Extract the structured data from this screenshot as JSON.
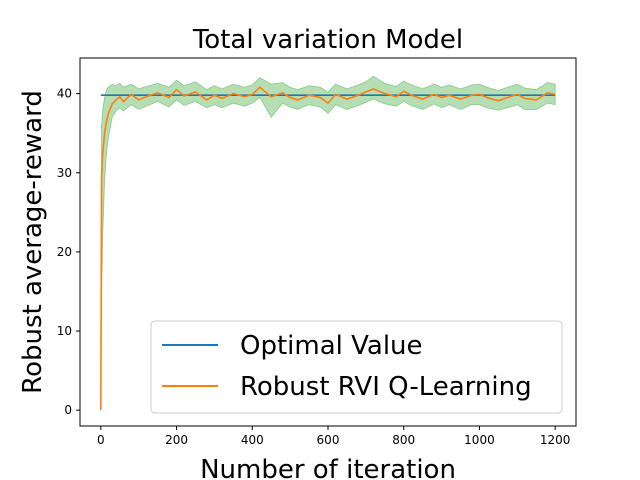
{
  "chart_data": {
    "type": "line",
    "title": "Total variation Model",
    "xlabel": "Number of iteration",
    "ylabel": "Robust average-reward",
    "xlim": [
      -55,
      1255
    ],
    "ylim": [
      -2,
      44.5
    ],
    "xticks": [
      0,
      200,
      400,
      600,
      800,
      1000,
      1200
    ],
    "yticks": [
      0,
      10,
      20,
      30,
      40
    ],
    "grid": false,
    "legend_position": "lower-right",
    "series": [
      {
        "name": "Optimal Value",
        "color": "#1f77b4",
        "x": [
          0,
          1200
        ],
        "y": [
          39.8,
          39.8
        ]
      },
      {
        "name": "Robust RVI Q-Learning",
        "color": "#ff7f0e",
        "x": [
          0,
          2,
          5,
          10,
          15,
          20,
          30,
          40,
          50,
          60,
          80,
          100,
          120,
          150,
          180,
          200,
          220,
          250,
          280,
          300,
          320,
          350,
          380,
          400,
          420,
          450,
          480,
          500,
          520,
          550,
          580,
          600,
          620,
          650,
          680,
          700,
          720,
          750,
          780,
          800,
          820,
          850,
          880,
          900,
          920,
          950,
          980,
          1000,
          1020,
          1050,
          1080,
          1100,
          1120,
          1150,
          1180,
          1200
        ],
        "y": [
          0,
          29.5,
          32.5,
          35.0,
          36.5,
          37.5,
          38.7,
          39.2,
          39.6,
          39.0,
          39.9,
          39.2,
          39.6,
          40.1,
          39.5,
          40.5,
          39.7,
          40.2,
          39.2,
          39.8,
          39.4,
          40.0,
          39.6,
          39.9,
          40.8,
          39.6,
          40.1,
          39.5,
          39.2,
          39.8,
          39.5,
          38.8,
          39.9,
          39.3,
          39.8,
          40.2,
          40.6,
          40.0,
          39.6,
          40.3,
          39.8,
          39.3,
          39.9,
          39.5,
          39.8,
          39.3,
          39.8,
          39.9,
          39.5,
          39.1,
          39.6,
          39.9,
          39.4,
          39.2,
          40.1,
          39.9
        ],
        "band_lower": [
          0,
          14.0,
          22.0,
          29.0,
          32.5,
          34.5,
          37.0,
          37.8,
          38.2,
          37.8,
          38.6,
          38.0,
          38.4,
          39.0,
          38.3,
          39.2,
          38.5,
          39.0,
          38.2,
          38.6,
          38.2,
          38.8,
          38.4,
          38.8,
          39.5,
          37.0,
          38.8,
          38.3,
          38.0,
          38.6,
          38.3,
          37.5,
          38.6,
          38.0,
          38.5,
          38.9,
          39.3,
          38.7,
          38.4,
          39.0,
          38.5,
          38.0,
          38.7,
          38.2,
          38.6,
          38.0,
          38.6,
          38.6,
          38.2,
          37.9,
          38.3,
          38.6,
          38.0,
          38.0,
          38.8,
          38.6
        ],
        "band_upper": [
          0,
          36.0,
          38.0,
          39.5,
          40.5,
          40.8,
          41.2,
          41.0,
          41.3,
          40.8,
          41.2,
          40.6,
          40.9,
          41.3,
          40.8,
          41.7,
          41.0,
          41.5,
          40.5,
          41.0,
          40.6,
          41.2,
          40.8,
          41.1,
          42.0,
          41.2,
          41.4,
          40.8,
          40.5,
          41.0,
          40.8,
          40.2,
          41.2,
          40.6,
          41.1,
          41.5,
          42.2,
          41.3,
          40.9,
          41.6,
          41.1,
          40.6,
          41.2,
          40.8,
          41.1,
          40.6,
          41.1,
          41.2,
          40.8,
          40.4,
          40.9,
          41.2,
          40.7,
          40.5,
          41.4,
          41.2
        ]
      }
    ],
    "band_color": "#2ca02c"
  }
}
